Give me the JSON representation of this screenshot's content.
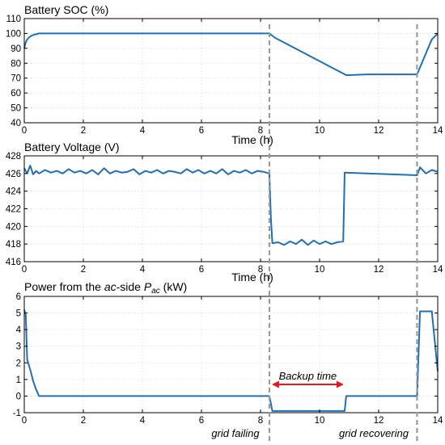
{
  "chart_data": [
    {
      "type": "line",
      "title": "Battery SOC (%)",
      "xlabel": "Time (h)",
      "ylabel": "",
      "xlim": [
        0,
        14
      ],
      "ylim": [
        40,
        110
      ],
      "xticks": [
        0,
        2,
        4,
        6,
        8,
        10,
        12,
        14
      ],
      "yticks": [
        40,
        50,
        60,
        70,
        80,
        90,
        100,
        110
      ],
      "grid": true,
      "series": [
        {
          "x": [
            0,
            0.05,
            0.1,
            0.2,
            0.3,
            0.4,
            0.5,
            8.3,
            8.5,
            10.9,
            11.0,
            11.6,
            13.3,
            13.5,
            13.8,
            14.0
          ],
          "y": [
            90,
            94,
            96,
            98,
            99,
            99.5,
            100,
            100,
            97,
            72,
            72,
            72.5,
            72.5,
            82,
            96,
            100
          ]
        }
      ]
    },
    {
      "type": "line",
      "title": "Battery Voltage (V)",
      "xlabel": "Time (h)",
      "ylabel": "",
      "xlim": [
        0,
        14
      ],
      "ylim": [
        416,
        428
      ],
      "xticks": [
        0,
        2,
        4,
        6,
        8,
        10,
        12,
        14
      ],
      "yticks": [
        416,
        418,
        420,
        422,
        424,
        426,
        428
      ],
      "grid": true,
      "series": [
        {
          "x": [
            0,
            0.1,
            0.2,
            0.3,
            0.4,
            0.5,
            0.7,
            0.9,
            1.1,
            1.3,
            1.5,
            1.7,
            1.9,
            2.1,
            2.3,
            2.5,
            2.7,
            2.9,
            3.1,
            3.3,
            3.5,
            3.7,
            3.9,
            4.1,
            4.3,
            4.5,
            4.7,
            4.9,
            5.1,
            5.3,
            5.5,
            5.7,
            5.9,
            6.1,
            6.3,
            6.5,
            6.7,
            6.9,
            7.1,
            7.3,
            7.5,
            7.7,
            7.9,
            8.1,
            8.3,
            8.35,
            8.4,
            8.6,
            8.8,
            9.0,
            9.2,
            9.4,
            9.6,
            9.8,
            10.0,
            10.2,
            10.4,
            10.6,
            10.8,
            10.85,
            13.3,
            13.4,
            13.6,
            13.8,
            14.0
          ],
          "y": [
            426.6,
            426.0,
            426.9,
            425.9,
            426.3,
            426.0,
            426.4,
            426.1,
            426.3,
            426.0,
            426.5,
            426.1,
            426.3,
            426.0,
            426.4,
            425.9,
            426.6,
            426.0,
            426.3,
            426.1,
            426.2,
            426.5,
            425.9,
            426.3,
            426.1,
            426.4,
            426.0,
            426.3,
            426.2,
            426.0,
            426.5,
            426.1,
            426.4,
            426.0,
            426.3,
            426.0,
            426.5,
            425.9,
            426.3,
            426.1,
            426.4,
            426.0,
            426.3,
            426.2,
            426.0,
            421.0,
            418.1,
            418.2,
            417.9,
            418.3,
            418.0,
            418.5,
            417.9,
            418.4,
            418.0,
            418.3,
            418.0,
            418.2,
            418.3,
            426.1,
            425.8,
            426.7,
            426.0,
            426.4,
            426.2
          ]
        }
      ]
    },
    {
      "type": "line",
      "title": "Power from the ac-side P",
      "title_parts": {
        "prefix": "Power from the ",
        "italic": "ac",
        "middle": "-side ",
        "symbol": "P",
        "subscript": "ac",
        "suffix": " (kW)"
      },
      "xlabel": "",
      "ylabel": "",
      "xlim": [
        0,
        14
      ],
      "ylim": [
        -1,
        6
      ],
      "xticks": [
        0,
        2,
        4,
        6,
        8,
        10,
        12,
        14
      ],
      "yticks": [
        -1,
        0,
        1,
        2,
        3,
        4,
        5,
        6
      ],
      "grid": true,
      "series": [
        {
          "x": [
            0,
            0.05,
            0.1,
            0.2,
            0.3,
            0.4,
            0.5,
            8.3,
            8.35,
            8.4,
            10.85,
            10.9,
            13.3,
            13.4,
            13.8,
            14.0
          ],
          "y": [
            5.2,
            4.9,
            2.2,
            1.6,
            0.9,
            0.4,
            0.0,
            0.0,
            -0.45,
            -0.9,
            -0.9,
            0.0,
            0.0,
            5.1,
            5.1,
            1.5
          ]
        }
      ],
      "annotations": {
        "backup_label": "Backup time",
        "backup_range": [
          8.3,
          10.9
        ],
        "grid_failing_label": "grid failing",
        "grid_recovering_label": "grid recovering"
      }
    }
  ],
  "events": [
    8.3,
    13.3
  ],
  "colors": {
    "series": "#1f6fb5",
    "event_line": "#9a9a9a",
    "backup_arrow": "#e41a1c",
    "grid": "#d9d9d9"
  }
}
